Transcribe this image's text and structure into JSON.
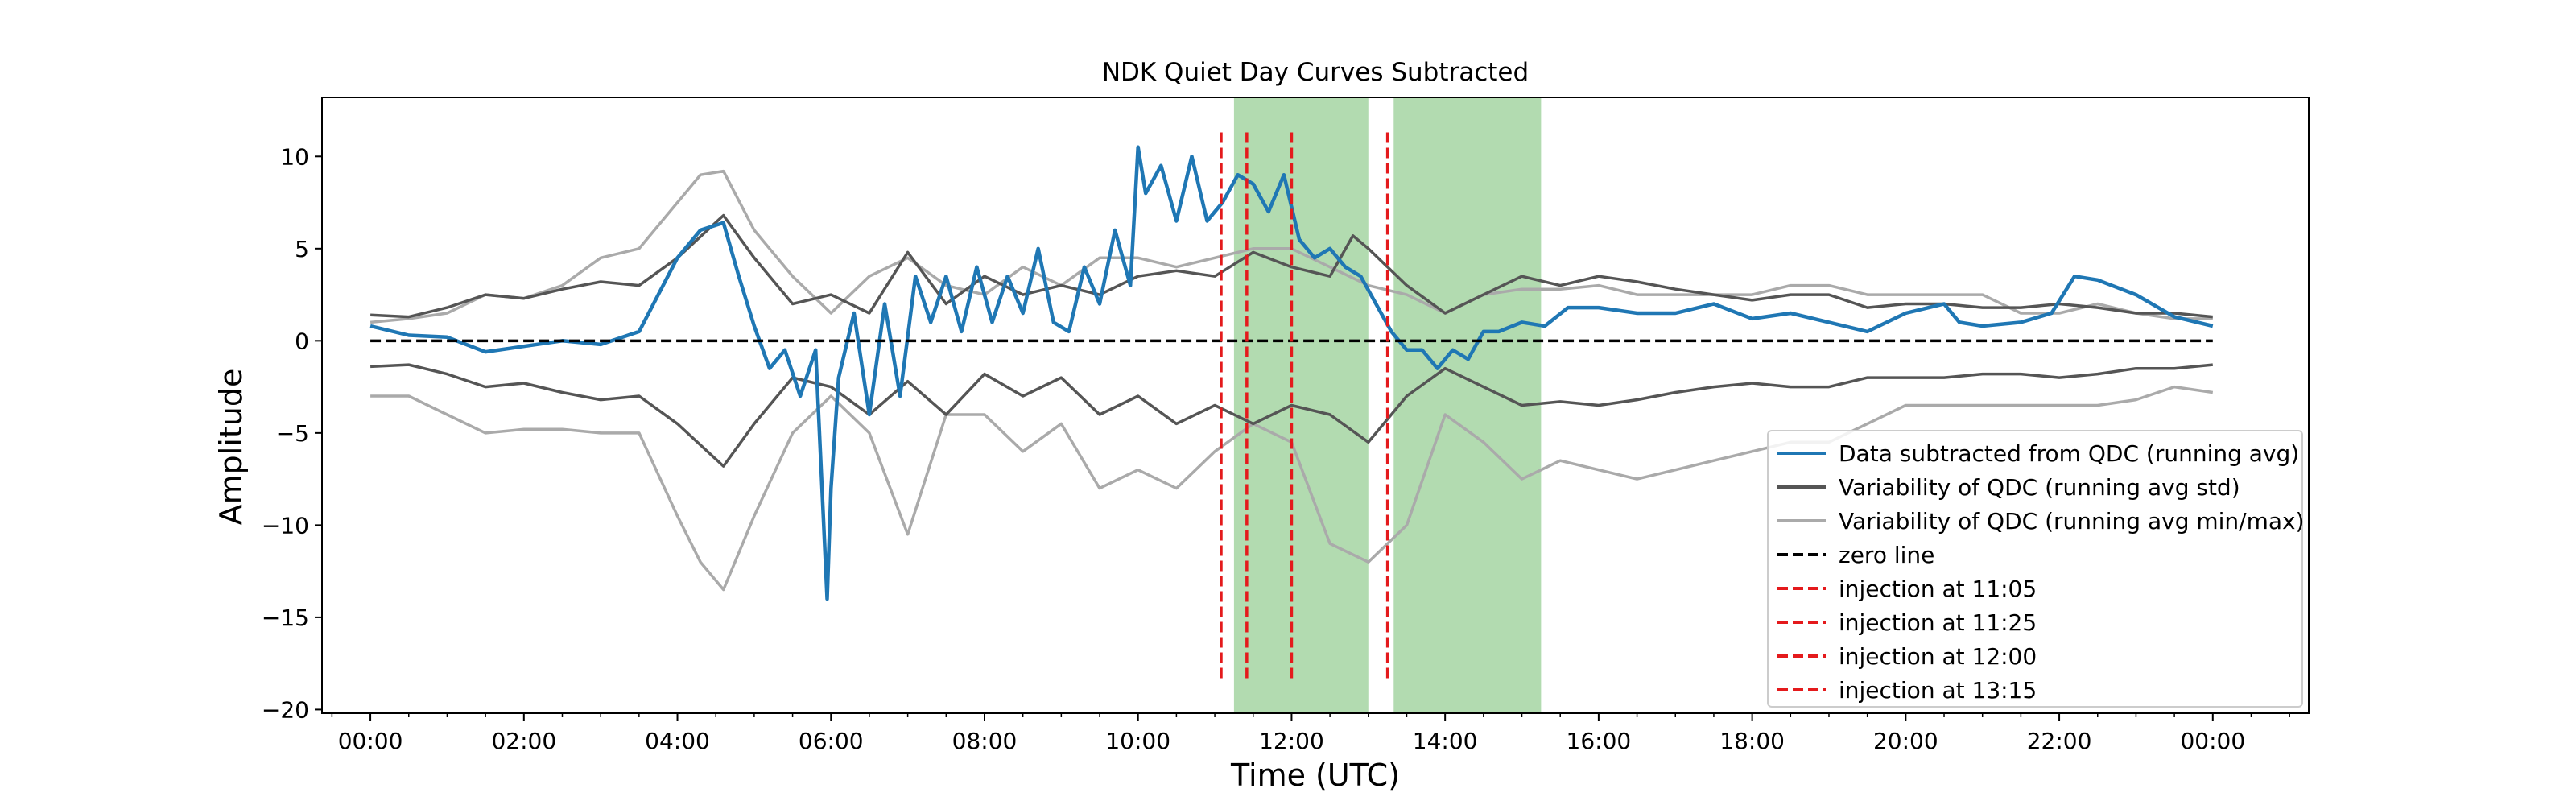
{
  "chart_data": {
    "type": "line",
    "title": "NDK Quiet Day Curves Subtracted",
    "xlabel": "Time (UTC)",
    "ylabel": "Amplitude",
    "xlim": [
      -0.63,
      25.25
    ],
    "ylim": [
      -20.2,
      13.2
    ],
    "x_tick_labels": [
      "00:00",
      "02:00",
      "04:00",
      "06:00",
      "08:00",
      "10:00",
      "12:00",
      "14:00",
      "16:00",
      "18:00",
      "20:00",
      "22:00",
      "00:00"
    ],
    "x_ticks_hours": [
      0,
      2,
      4,
      6,
      8,
      10,
      12,
      14,
      16,
      18,
      20,
      22,
      24
    ],
    "y_ticks": [
      10,
      5,
      0,
      -5,
      -10,
      -15,
      -20
    ],
    "grid": false,
    "legend_position": "lower-right",
    "colors": {
      "data": "#1f77b4",
      "std": "#555555",
      "minmax": "#aaaaaa",
      "zero": "#000000",
      "injection": "#e41a1c",
      "shade": "#b2dbb0"
    },
    "shaded_regions": [
      {
        "x_start": 11.25,
        "x_end": 13.0
      },
      {
        "x_start": 13.33,
        "x_end": 15.25
      }
    ],
    "injections": [
      {
        "time": "11:05",
        "x": 11.083,
        "y_range": [
          -18.5,
          11.3
        ]
      },
      {
        "time": "11:25",
        "x": 11.417,
        "y_range": [
          -18.5,
          11.3
        ]
      },
      {
        "time": "12:00",
        "x": 12.0,
        "y_range": [
          -18.5,
          11.3
        ]
      },
      {
        "time": "13:15",
        "x": 13.25,
        "y_range": [
          -18.5,
          11.3
        ]
      }
    ],
    "legend": [
      {
        "label": "Data subtracted from QDC (running avg)",
        "style": "data"
      },
      {
        "label": "Variability of QDC (running avg std)",
        "style": "std"
      },
      {
        "label": "Variability of QDC (running avg min/max)",
        "style": "minmax"
      },
      {
        "label": "zero line",
        "style": "zero"
      },
      {
        "label": "injection at 11:05",
        "style": "injection"
      },
      {
        "label": "injection at 11:25",
        "style": "injection"
      },
      {
        "label": "injection at 12:00",
        "style": "injection"
      },
      {
        "label": "injection at 13:15",
        "style": "injection"
      }
    ],
    "series": [
      {
        "name": "Data subtracted from QDC (running avg)",
        "x": [
          0,
          0.5,
          1,
          1.5,
          2,
          2.5,
          3,
          3.5,
          4,
          4.3,
          4.6,
          4.8,
          5,
          5.2,
          5.4,
          5.6,
          5.8,
          5.95,
          6.0,
          6.1,
          6.3,
          6.5,
          6.7,
          6.9,
          7.1,
          7.3,
          7.5,
          7.7,
          7.9,
          8.1,
          8.3,
          8.5,
          8.7,
          8.9,
          9.1,
          9.3,
          9.5,
          9.7,
          9.9,
          10.0,
          10.1,
          10.3,
          10.5,
          10.7,
          10.9,
          11.1,
          11.3,
          11.5,
          11.7,
          11.9,
          12.1,
          12.3,
          12.5,
          12.7,
          12.9,
          13.1,
          13.3,
          13.5,
          13.7,
          13.9,
          14.1,
          14.3,
          14.5,
          14.7,
          15.0,
          15.3,
          15.6,
          16,
          16.5,
          17,
          17.5,
          18,
          18.5,
          19,
          19.5,
          20,
          20.5,
          20.7,
          21,
          21.5,
          21.9,
          22.2,
          22.5,
          23,
          23.5,
          24
        ],
        "y": [
          0.8,
          0.3,
          0.2,
          -0.6,
          -0.3,
          0,
          -0.2,
          0.5,
          4.5,
          6.0,
          6.4,
          3.5,
          0.8,
          -1.5,
          -0.5,
          -3.0,
          -0.5,
          -14.0,
          -8.0,
          -2.0,
          1.5,
          -4.0,
          2.0,
          -3.0,
          3.5,
          1.0,
          3.5,
          0.5,
          4.0,
          1.0,
          3.5,
          1.5,
          5.0,
          1.0,
          0.5,
          4.0,
          2.0,
          6.0,
          3.0,
          10.5,
          8.0,
          9.5,
          6.5,
          10.0,
          6.5,
          7.5,
          9.0,
          8.5,
          7.0,
          9.0,
          5.5,
          4.5,
          5.0,
          4.0,
          3.5,
          2.0,
          0.5,
          -0.5,
          -0.5,
          -1.5,
          -0.5,
          -1.0,
          0.5,
          0.5,
          1.0,
          0.8,
          1.8,
          1.8,
          1.5,
          1.5,
          2.0,
          1.2,
          1.5,
          1.0,
          0.5,
          1.5,
          2.0,
          1.0,
          0.8,
          1.0,
          1.5,
          3.5,
          3.3,
          2.5,
          1.3,
          0.8
        ]
      },
      {
        "name": "Variability of QDC (running avg std)",
        "x": [
          0,
          0.5,
          1,
          1.5,
          2,
          2.5,
          3,
          3.5,
          4,
          4.6,
          5,
          5.5,
          6,
          6.5,
          7,
          7.5,
          8,
          8.5,
          9,
          9.5,
          10,
          10.5,
          11,
          11.5,
          12,
          12.5,
          12.8,
          13,
          13.5,
          14,
          14.5,
          15,
          15.5,
          16,
          16.5,
          17,
          17.5,
          18,
          18.5,
          19,
          19.5,
          20,
          20.5,
          21,
          21.5,
          22,
          22.5,
          23,
          23.5,
          24
        ],
        "y": [
          1.4,
          1.3,
          1.8,
          2.5,
          2.3,
          2.8,
          3.2,
          3.0,
          4.5,
          6.8,
          4.5,
          2.0,
          2.5,
          1.5,
          4.8,
          2.0,
          3.5,
          2.5,
          3.0,
          2.5,
          3.5,
          3.8,
          3.5,
          4.8,
          4.0,
          3.5,
          5.7,
          5.0,
          3.0,
          1.5,
          2.5,
          3.5,
          3.0,
          3.5,
          3.2,
          2.8,
          2.5,
          2.2,
          2.5,
          2.5,
          1.8,
          2.0,
          2.0,
          1.8,
          1.8,
          2.0,
          1.8,
          1.5,
          1.5,
          1.3
        ]
      },
      {
        "name": "Variability of QDC (running avg std) lower",
        "x": [
          0,
          0.5,
          1,
          1.5,
          2,
          2.5,
          3,
          3.5,
          4,
          4.6,
          5,
          5.5,
          6,
          6.5,
          7,
          7.5,
          8,
          8.5,
          9,
          9.5,
          10,
          10.5,
          11,
          11.5,
          12,
          12.5,
          13,
          13.5,
          14,
          14.5,
          15,
          15.5,
          16,
          16.5,
          17,
          17.5,
          18,
          18.5,
          19,
          19.5,
          20,
          20.5,
          21,
          21.5,
          22,
          22.5,
          23,
          23.5,
          24
        ],
        "y": [
          -1.4,
          -1.3,
          -1.8,
          -2.5,
          -2.3,
          -2.8,
          -3.2,
          -3.0,
          -4.5,
          -6.8,
          -4.5,
          -2.0,
          -2.5,
          -4.0,
          -2.2,
          -4.0,
          -1.8,
          -3.0,
          -2.0,
          -4.0,
          -3.0,
          -4.5,
          -3.5,
          -4.5,
          -3.5,
          -4.0,
          -5.5,
          -3.0,
          -1.5,
          -2.5,
          -3.5,
          -3.3,
          -3.5,
          -3.2,
          -2.8,
          -2.5,
          -2.3,
          -2.5,
          -2.5,
          -2.0,
          -2.0,
          -2.0,
          -1.8,
          -1.8,
          -2.0,
          -1.8,
          -1.5,
          -1.5,
          -1.3
        ]
      },
      {
        "name": "Variability of QDC (running avg min/max)",
        "x": [
          0,
          0.5,
          1,
          1.5,
          2,
          2.5,
          3,
          3.5,
          4,
          4.3,
          4.6,
          5,
          5.5,
          6,
          6.5,
          7,
          7.5,
          8,
          8.5,
          9,
          9.5,
          10,
          10.5,
          11,
          11.5,
          12,
          12.5,
          13,
          13.5,
          14,
          14.5,
          15,
          15.5,
          16,
          16.5,
          17,
          17.5,
          18,
          18.5,
          19,
          19.5,
          20,
          20.5,
          21,
          21.5,
          22,
          22.5,
          23,
          23.5,
          24
        ],
        "y": [
          1.0,
          1.2,
          1.5,
          2.5,
          2.3,
          3.0,
          4.5,
          5.0,
          7.5,
          9.0,
          9.2,
          6.0,
          3.5,
          1.5,
          3.5,
          4.5,
          3.0,
          2.5,
          4.0,
          3.0,
          4.5,
          4.5,
          4.0,
          4.5,
          5.0,
          5.0,
          4.0,
          3.0,
          2.5,
          1.5,
          2.5,
          2.8,
          2.8,
          3.0,
          2.5,
          2.5,
          2.5,
          2.5,
          3.0,
          3.0,
          2.5,
          2.5,
          2.5,
          2.5,
          1.5,
          1.5,
          2.0,
          1.5,
          1.2,
          1.2
        ]
      },
      {
        "name": "Variability of QDC (running avg min/max) lower",
        "x": [
          0,
          0.5,
          1,
          1.5,
          2,
          2.5,
          3,
          3.5,
          4,
          4.3,
          4.6,
          5,
          5.5,
          6,
          6.5,
          7,
          7.5,
          8,
          8.5,
          9,
          9.5,
          10,
          10.5,
          11,
          11.5,
          12,
          12.5,
          13,
          13.5,
          14,
          14.5,
          15,
          15.5,
          16,
          16.5,
          17,
          17.5,
          18,
          18.5,
          19,
          19.5,
          20,
          20.5,
          21,
          21.5,
          22,
          22.5,
          23,
          23.5,
          24
        ],
        "y": [
          -3.0,
          -3.0,
          -4.0,
          -5.0,
          -4.8,
          -4.8,
          -5.0,
          -5.0,
          -9.5,
          -12.0,
          -13.5,
          -9.5,
          -5.0,
          -3.0,
          -5.0,
          -10.5,
          -4.0,
          -4.0,
          -6.0,
          -4.5,
          -8.0,
          -7.0,
          -8.0,
          -6.0,
          -4.5,
          -5.5,
          -11.0,
          -12.0,
          -10.0,
          -4.0,
          -5.5,
          -7.5,
          -6.5,
          -7.0,
          -7.5,
          -7.0,
          -6.5,
          -6.0,
          -5.5,
          -5.5,
          -4.5,
          -3.5,
          -3.5,
          -3.5,
          -3.5,
          -3.5,
          -3.5,
          -3.2,
          -2.5,
          -2.8
        ]
      }
    ]
  }
}
